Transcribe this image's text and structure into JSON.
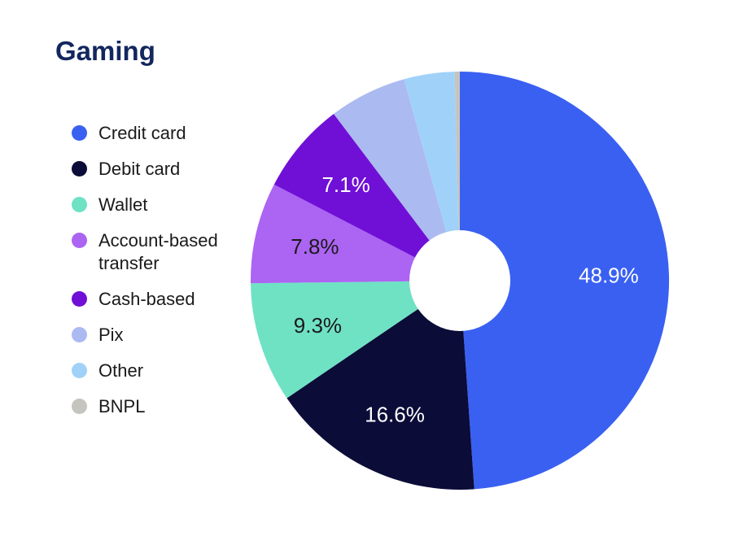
{
  "title": "Gaming",
  "colors": {
    "title": "#13265E",
    "legend_text": "#1A1A1A",
    "background": "#FFFFFF",
    "donut_hole": "#FFFFFF"
  },
  "chart_data": {
    "type": "pie",
    "title": "Gaming",
    "donut": true,
    "start_angle_deg": 0,
    "direction": "clockwise",
    "legend_position": "left",
    "total": 100,
    "slices": [
      {
        "label": "Credit card",
        "value": 48.9,
        "display": "48.9%",
        "color": "#3A60F2",
        "label_color": "#FFFFFF"
      },
      {
        "label": "Debit card",
        "value": 16.6,
        "display": "16.6%",
        "color": "#0B0C38",
        "label_color": "#FFFFFF"
      },
      {
        "label": "Wallet",
        "value": 9.3,
        "display": "9.3%",
        "color": "#6FE2C4",
        "label_color": "#1A1A1A"
      },
      {
        "label": "Account-based transfer",
        "value": 7.8,
        "display": "7.8%",
        "color": "#AC64F2",
        "label_color": "#1A1A1A"
      },
      {
        "label": "Cash-based",
        "value": 7.1,
        "display": "7.1%",
        "color": "#7010D6",
        "label_color": "#FFFFFF"
      },
      {
        "label": "Pix",
        "value": 6.0,
        "display": null,
        "color": "#ACBAF2",
        "label_color": null,
        "estimated": true
      },
      {
        "label": "Other",
        "value": 3.9,
        "display": null,
        "color": "#A0D2F9",
        "label_color": null,
        "estimated": true
      },
      {
        "label": "BNPL",
        "value": 0.4,
        "display": null,
        "color": "#C6C4BE",
        "label_color": null,
        "estimated": true
      }
    ]
  }
}
